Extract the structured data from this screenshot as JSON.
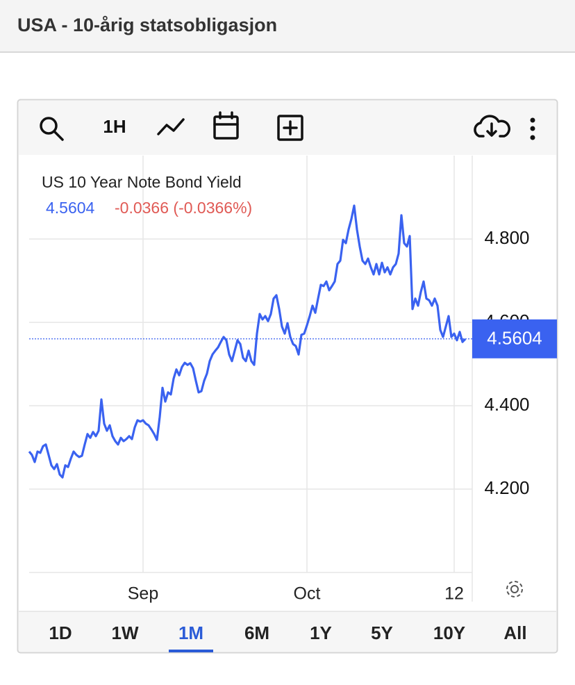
{
  "header": {
    "title": "USA - 10-årig statsobligasjon"
  },
  "toolbar": {
    "interval": "1H"
  },
  "range_buttons": [
    "1D",
    "1W",
    "1M",
    "6M",
    "1Y",
    "5Y",
    "10Y",
    "All"
  ],
  "selected_range": 2,
  "chart_data": {
    "type": "line",
    "title": "US 10 Year Note Bond Yield",
    "last_value": 4.5604,
    "change": -0.0366,
    "change_percent_label": "(-0.0366%)",
    "color": "#3a62f0",
    "change_color": "#e05a55",
    "values": [
      4.29,
      4.282,
      4.265,
      4.29,
      4.287,
      4.303,
      4.307,
      4.282,
      4.257,
      4.248,
      4.26,
      4.235,
      4.228,
      4.257,
      4.253,
      4.273,
      4.29,
      4.282,
      4.277,
      4.28,
      4.307,
      4.332,
      4.323,
      4.337,
      4.327,
      4.34,
      4.415,
      4.357,
      4.34,
      4.353,
      4.327,
      4.315,
      4.307,
      4.323,
      4.315,
      4.32,
      4.327,
      4.32,
      4.348,
      4.365,
      4.362,
      4.365,
      4.357,
      4.353,
      4.343,
      4.332,
      4.318,
      4.373,
      4.443,
      4.41,
      4.432,
      4.427,
      4.465,
      4.487,
      4.473,
      4.493,
      4.503,
      4.498,
      4.502,
      4.49,
      4.46,
      4.432,
      4.435,
      4.46,
      4.477,
      4.507,
      4.523,
      4.532,
      4.54,
      4.553,
      4.565,
      4.557,
      4.523,
      4.507,
      4.532,
      4.557,
      4.548,
      4.515,
      4.507,
      4.532,
      4.507,
      4.498,
      4.573,
      4.62,
      4.607,
      4.615,
      4.603,
      4.62,
      4.657,
      4.665,
      4.632,
      4.59,
      4.573,
      4.598,
      4.565,
      4.548,
      4.543,
      4.523,
      4.57,
      4.573,
      4.593,
      4.615,
      4.64,
      4.623,
      4.657,
      4.69,
      4.687,
      4.698,
      4.677,
      4.687,
      4.698,
      4.74,
      4.748,
      4.798,
      4.79,
      4.823,
      4.848,
      4.88,
      4.823,
      4.782,
      4.748,
      4.74,
      4.753,
      4.732,
      4.715,
      4.74,
      4.715,
      4.743,
      4.72,
      4.732,
      4.715,
      4.732,
      4.74,
      4.765,
      4.857,
      4.79,
      4.782,
      4.807,
      4.632,
      4.657,
      4.64,
      4.673,
      4.698,
      4.657,
      4.653,
      4.64,
      4.657,
      4.64,
      4.582,
      4.565,
      4.59,
      4.615,
      4.565,
      4.573,
      4.557,
      4.577,
      4.553,
      4.56
    ],
    "xlim": [
      0,
      157
    ],
    "xticks": [
      {
        "value": 41,
        "label": "Sep"
      },
      {
        "value": 100,
        "label": "Oct"
      },
      {
        "value": 153,
        "label": "12"
      }
    ],
    "ylim": [
      4.0,
      5.0
    ],
    "yticks": [
      {
        "value": 4.2,
        "label": "4.200"
      },
      {
        "value": 4.4,
        "label": "4.400"
      },
      {
        "value": 4.6,
        "label": "4.600"
      },
      {
        "value": 4.8,
        "label": "4.800"
      }
    ],
    "grid": true
  }
}
